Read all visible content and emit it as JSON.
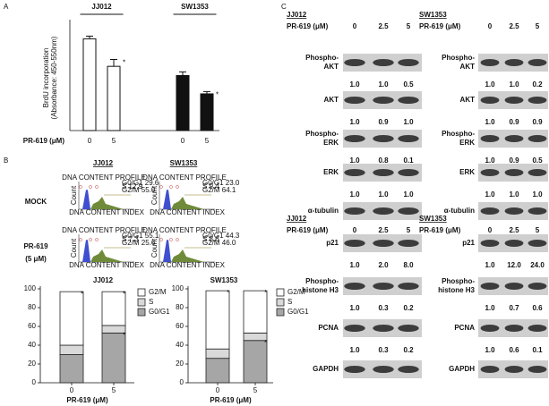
{
  "panel_labels": [
    "A",
    "B",
    "C"
  ],
  "chart_data": [
    {
      "type": "bar",
      "ylabel": [
        "BrdU incorporation",
        "(Absorbance: 450-550nm)"
      ],
      "groups": [
        "JJ012",
        "SW1353"
      ],
      "xlabel": "PR-619 (μM)",
      "categories": [
        "0",
        "5",
        "0",
        "5"
      ],
      "values": [
        2.0,
        1.4,
        1.2,
        0.8
      ],
      "errors": [
        0.06,
        0.15,
        0.08,
        0.05
      ],
      "colors": [
        "#ffffff",
        "#ffffff",
        "#111111",
        "#111111"
      ],
      "ylim": [
        0,
        2.3
      ],
      "annotations": [
        {
          "index": 1,
          "text": "*"
        },
        {
          "index": 3,
          "text": "*"
        }
      ]
    },
    {
      "type": "stacked_bar",
      "title": "JJ012",
      "xlabel": "PR-619 (μM)",
      "categories": [
        "0",
        "5"
      ],
      "series": [
        {
          "name": "G0/G1",
          "color": "#a6a6a6",
          "values": [
            30,
            53
          ]
        },
        {
          "name": "S",
          "color": "#d9d9d9",
          "values": [
            10,
            8
          ]
        },
        {
          "name": "G2/M",
          "color": "#ffffff",
          "values": [
            57,
            36
          ]
        }
      ],
      "ylim": [
        0,
        100
      ],
      "yticks": [
        0,
        20,
        40,
        60,
        80,
        100
      ],
      "legend": "upper right",
      "annotations": [
        {
          "series": 2,
          "index": 0,
          "text": "*"
        },
        {
          "series": 2,
          "index": 1,
          "text": "*"
        },
        {
          "series": 0,
          "index": 1,
          "text": "*"
        }
      ]
    },
    {
      "type": "stacked_bar",
      "title": "SW1353",
      "xlabel": "PR-619 (μM)",
      "categories": [
        "0",
        "5"
      ],
      "series": [
        {
          "name": "G0/G1",
          "color": "#a6a6a6",
          "values": [
            26,
            45
          ]
        },
        {
          "name": "S",
          "color": "#d9d9d9",
          "values": [
            10,
            8
          ]
        },
        {
          "name": "G2/M",
          "color": "#ffffff",
          "values": [
            62,
            45
          ]
        }
      ],
      "ylim": [
        0,
        100
      ],
      "yticks": [
        0,
        20,
        40,
        60,
        80,
        100
      ],
      "legend": "upper right",
      "annotations": [
        {
          "series": 2,
          "index": 0,
          "text": "*"
        },
        {
          "series": 2,
          "index": 1,
          "text": "*"
        },
        {
          "series": 0,
          "index": 1,
          "text": "*"
        }
      ]
    }
  ],
  "flow": {
    "columns": [
      "JJ012",
      "SW1353"
    ],
    "rows": [
      [
        "MOCK"
      ],
      [
        "PR-619",
        "(5 μM)"
      ]
    ],
    "header": "DNA CONTENT PROFILE",
    "xlabel": "DNA CONTENT INDEX",
    "ylabel": "Count",
    "panels": [
      [
        "G0/G1 29.6",
        "S 12.9",
        "G2/M 55.0"
      ],
      [
        "G0/G1 23.0",
        "S 9.4",
        "G2/M 64.1"
      ],
      [
        "G0/G1 55.1",
        "S 7.3",
        "G2/M 25.6"
      ],
      [
        "G0/G1 44.3",
        "S 8.6",
        "G2/M 46.0"
      ]
    ]
  },
  "blots": [
    {
      "title": "JJ012",
      "treatment": "PR-619 (μM)",
      "doses": [
        "0",
        "2.5",
        "5"
      ],
      "rows": [
        {
          "label": [
            "Phospho-",
            "AKT"
          ],
          "ratios": [
            "1.0",
            "1.0",
            "0.5"
          ]
        },
        {
          "label": [
            "AKT"
          ],
          "ratios": [
            "1.0",
            "0.9",
            "1.0"
          ]
        },
        {
          "label": [
            "Phospho-",
            "ERK"
          ],
          "ratios": [
            "1.0",
            "0.8",
            "0.1"
          ]
        },
        {
          "label": [
            "ERK"
          ],
          "ratios": [
            "1.0",
            "1.0",
            "1.0"
          ]
        },
        {
          "label": [
            "α-tubulin"
          ]
        }
      ]
    },
    {
      "title": "SW1353",
      "treatment": "PR-619 (μM)",
      "doses": [
        "0",
        "2.5",
        "5"
      ],
      "rows": [
        {
          "label": [
            "Phospho-",
            "AKT"
          ],
          "ratios": [
            "1.0",
            "1.0",
            "0.2"
          ]
        },
        {
          "label": [
            "AKT"
          ],
          "ratios": [
            "1.0",
            "0.9",
            "0.9"
          ]
        },
        {
          "label": [
            "Phospho-",
            "ERK"
          ],
          "ratios": [
            "1.0",
            "0.9",
            "0.5"
          ]
        },
        {
          "label": [
            "ERK"
          ],
          "ratios": [
            "1.0",
            "1.0",
            "1.0"
          ]
        },
        {
          "label": [
            "α-tubulin"
          ]
        }
      ]
    },
    {
      "title": "JJ012",
      "treatment": "PR-619 (μM)",
      "doses": [
        "0",
        "2.5",
        "5"
      ],
      "rows": [
        {
          "label": [
            "p21"
          ],
          "ratios": [
            "1.0",
            "2.0",
            "8.0"
          ]
        },
        {
          "label": [
            "Phospho-",
            "histone H3"
          ],
          "ratios": [
            "1.0",
            "0.3",
            "0.2"
          ]
        },
        {
          "label": [
            "PCNA"
          ],
          "ratios": [
            "1.0",
            "0.3",
            "0.2"
          ]
        },
        {
          "label": [
            "GAPDH"
          ]
        }
      ]
    },
    {
      "title": "SW1353",
      "treatment": "PR-619 (μM)",
      "doses": [
        "0",
        "2.5",
        "5"
      ],
      "rows": [
        {
          "label": [
            "p21"
          ],
          "ratios": [
            "1.0",
            "12.0",
            "24.0"
          ]
        },
        {
          "label": [
            "Phospho-",
            "histone H3"
          ],
          "ratios": [
            "1.0",
            "0.7",
            "0.6"
          ]
        },
        {
          "label": [
            "PCNA"
          ],
          "ratios": [
            "1.0",
            "0.6",
            "0.1"
          ]
        },
        {
          "label": [
            "GAPDH"
          ]
        }
      ]
    }
  ]
}
